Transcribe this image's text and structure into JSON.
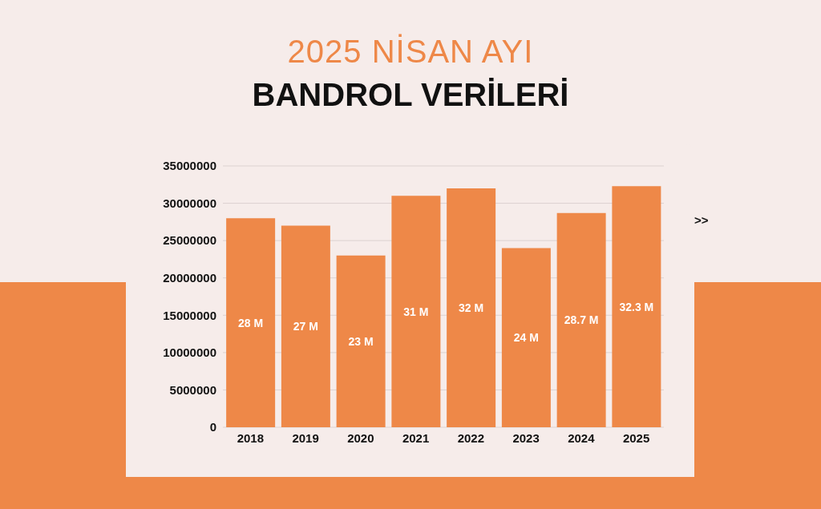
{
  "chart_data": {
    "type": "bar",
    "title": "2025 NİSAN AYI",
    "subtitle": "BANDROL VERİLERİ",
    "categories": [
      "2018",
      "2019",
      "2020",
      "2021",
      "2022",
      "2023",
      "2024",
      "2025"
    ],
    "values": [
      28000000,
      27000000,
      23000000,
      31000000,
      32000000,
      24000000,
      28700000,
      32300000
    ],
    "value_labels": [
      "28 M",
      "27 M",
      "23 M",
      "31 M",
      "32 M",
      "24 M",
      "28.7 M",
      "32.3 M"
    ],
    "color": "#ee8848",
    "ylim": [
      0,
      35000000
    ],
    "yticks": [
      0,
      5000000,
      10000000,
      15000000,
      20000000,
      25000000,
      30000000,
      35000000
    ],
    "grid": "y",
    "legend": false,
    "annotations": [
      ">>"
    ]
  }
}
